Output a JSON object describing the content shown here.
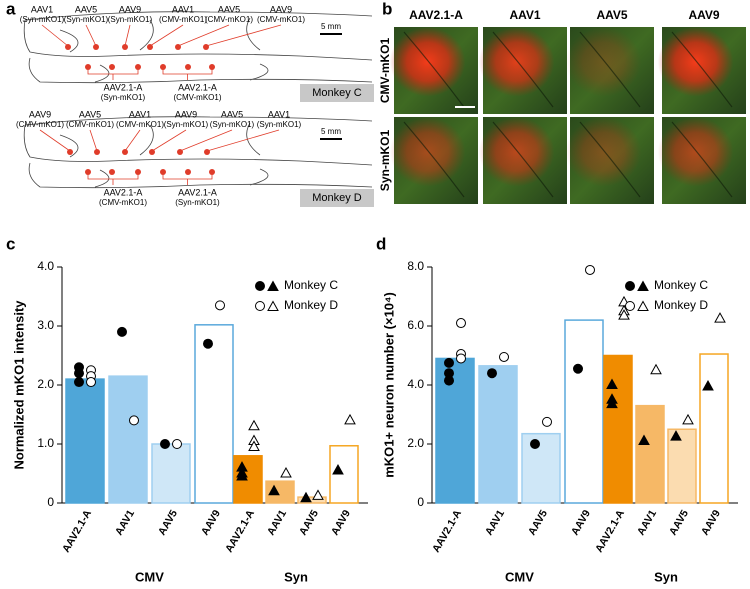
{
  "panels": {
    "a": {
      "label": "a",
      "monkeys": [
        {
          "name": "Monkey C",
          "scale": "5 mm",
          "top": [
            {
              "vector": "AAV1",
              "promoter": "(Syn-mKO1)"
            },
            {
              "vector": "AAV5",
              "promoter": "(Syn-mKO1)"
            },
            {
              "vector": "AAV9",
              "promoter": "(Syn-mKO1)"
            },
            {
              "vector": "AAV1",
              "promoter": "(CMV-mKO1)"
            },
            {
              "vector": "AAV5",
              "promoter": "(CMV-mKO1)"
            },
            {
              "vector": "AAV9",
              "promoter": "(CMV-mKO1)"
            }
          ],
          "bottom": [
            {
              "vector": "AAV2.1-A",
              "promoter": "(Syn-mKO1)"
            },
            {
              "vector": "AAV2.1-A",
              "promoter": "(CMV-mKO1)"
            }
          ]
        },
        {
          "name": "Monkey D",
          "scale": "5 mm",
          "top": [
            {
              "vector": "AAV9",
              "promoter": "(CMV-mKO1)"
            },
            {
              "vector": "AAV5",
              "promoter": "(CMV-mKO1)"
            },
            {
              "vector": "AAV1",
              "promoter": "(CMV-mKO1)"
            },
            {
              "vector": "AAV9",
              "promoter": "(Syn-mKO1)"
            },
            {
              "vector": "AAV5",
              "promoter": "(Syn-mKO1)"
            },
            {
              "vector": "AAV1",
              "promoter": "(Syn-mKO1)"
            }
          ],
          "bottom": [
            {
              "vector": "AAV2.1-A",
              "promoter": "(CMV-mKO1)"
            },
            {
              "vector": "AAV2.1-A",
              "promoter": "(Syn-mKO1)"
            }
          ]
        }
      ]
    },
    "b": {
      "label": "b",
      "columns": [
        "AAV2.1-A",
        "AAV1",
        "AAV5",
        "AAV9"
      ],
      "rows": [
        "CMV-mKO1",
        "Syn-mKO1"
      ]
    }
  },
  "chart_data": [
    {
      "type": "bar",
      "label": "c",
      "ylabel": "Normalized mKO1 intensity",
      "ylim": [
        0,
        4
      ],
      "yticks": [
        0,
        {
          "value": 1,
          "label": "1.0"
        },
        {
          "value": 2,
          "label": "2.0"
        },
        {
          "value": 3,
          "label": "3.0"
        },
        {
          "value": 4,
          "label": "4.0"
        }
      ],
      "legend": [
        {
          "name": "Monkey C",
          "fill": "#000000"
        },
        {
          "name": "Monkey D",
          "fill": "#ffffff"
        }
      ],
      "groups": [
        {
          "name": "CMV",
          "marker": "circle",
          "categories": [
            "AAV2.1-A",
            "AAV1",
            "AAV5",
            "AAV9"
          ],
          "values": [
            2.1,
            2.15,
            1.0,
            3.02
          ],
          "colors": [
            "#4fa6d8",
            "#9fcff0",
            "#cfe7f7",
            "#ffffff"
          ],
          "edgecolors": [
            "#4fa6d8",
            "#9fcff0",
            "#9fcff0",
            "#5aa9dc"
          ],
          "points": [
            [
              [
                2.3,
                2.2,
                2.05
              ],
              [
                2.9
              ],
              [
                1.0
              ],
              [
                2.7
              ]
            ],
            [
              [
                2.25,
                2.15,
                2.05
              ],
              [
                1.4
              ],
              [
                1.0
              ],
              [
                3.35
              ]
            ]
          ]
        },
        {
          "name": "Syn",
          "marker": "triangle",
          "categories": [
            "AAV2.1-A",
            "AAV1",
            "AAV5",
            "AAV9"
          ],
          "values": [
            0.8,
            0.37,
            0.1,
            0.97
          ],
          "colors": [
            "#f08c00",
            "#f6b866",
            "#fbdcb0",
            "#ffffff"
          ],
          "edgecolors": [
            "#f08c00",
            "#f6b866",
            "#f6b866",
            "#f5a623"
          ],
          "points": [
            [
              [
                0.6,
                0.5,
                0.45
              ],
              [
                0.2
              ],
              [
                0.08
              ],
              [
                0.55
              ]
            ],
            [
              [
                1.3,
                1.05,
                0.95
              ],
              [
                0.5
              ],
              [
                0.12
              ],
              [
                1.4
              ]
            ]
          ]
        }
      ]
    },
    {
      "type": "bar",
      "label": "d",
      "ylabel": "mKO1+ neuron number (×10⁴)",
      "ylim": [
        0,
        8
      ],
      "yticks": [
        0,
        {
          "value": 2,
          "label": "2.0"
        },
        {
          "value": 4,
          "label": "4.0"
        },
        {
          "value": 6,
          "label": "6.0"
        },
        {
          "value": 8,
          "label": "8.0"
        }
      ],
      "legend": [
        {
          "name": "Monkey C",
          "fill": "#000000"
        },
        {
          "name": "Monkey D",
          "fill": "#ffffff"
        }
      ],
      "groups": [
        {
          "name": "CMV",
          "marker": "circle",
          "categories": [
            "AAV2.1-A",
            "AAV1",
            "AAV5",
            "AAV9"
          ],
          "values": [
            4.9,
            4.65,
            2.35,
            6.2
          ],
          "colors": [
            "#4fa6d8",
            "#9fcff0",
            "#cfe7f7",
            "#ffffff"
          ],
          "edgecolors": [
            "#4fa6d8",
            "#9fcff0",
            "#9fcff0",
            "#5aa9dc"
          ],
          "points": [
            [
              [
                4.75,
                4.4,
                4.15
              ],
              [
                4.4
              ],
              [
                2.0
              ],
              [
                4.55
              ]
            ],
            [
              [
                6.1,
                5.05,
                4.9
              ],
              [
                4.95
              ],
              [
                2.75
              ],
              [
                7.9
              ]
            ]
          ]
        },
        {
          "name": "Syn",
          "marker": "triangle",
          "categories": [
            "AAV2.1-A",
            "AAV1",
            "AAV5",
            "AAV9"
          ],
          "values": [
            5.0,
            3.3,
            2.5,
            5.05
          ],
          "colors": [
            "#f08c00",
            "#f6b866",
            "#fbdcb0",
            "#ffffff"
          ],
          "edgecolors": [
            "#f08c00",
            "#f6b866",
            "#f6b866",
            "#f5a623"
          ],
          "points": [
            [
              [
                4.0,
                3.5,
                3.35
              ],
              [
                2.1
              ],
              [
                2.25
              ],
              [
                3.95
              ]
            ],
            [
              [
                6.8,
                6.5,
                6.35
              ],
              [
                4.5
              ],
              [
                2.8
              ],
              [
                6.25
              ]
            ]
          ]
        }
      ]
    }
  ]
}
